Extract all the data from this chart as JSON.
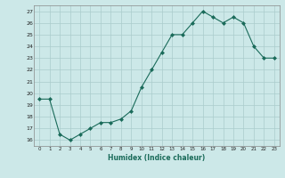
{
  "x": [
    0,
    1,
    2,
    3,
    4,
    5,
    6,
    7,
    8,
    9,
    10,
    11,
    12,
    13,
    14,
    15,
    16,
    17,
    18,
    19,
    20,
    21,
    22,
    23
  ],
  "y": [
    19.5,
    19.5,
    16.5,
    16.0,
    16.5,
    17.0,
    17.5,
    17.5,
    17.8,
    18.5,
    20.5,
    22.0,
    23.5,
    25.0,
    25.0,
    26.0,
    27.0,
    26.5,
    26.0,
    26.5,
    26.0,
    24.0,
    23.0,
    23.0
  ],
  "line_color": "#1a6b5a",
  "marker": "D",
  "marker_size": 2,
  "bg_color": "#cce8e8",
  "grid_color": "#aacccc",
  "xlabel": "Humidex (Indice chaleur)",
  "ylim": [
    15.5,
    27.5
  ],
  "xlim": [
    -0.5,
    23.5
  ],
  "yticks": [
    16,
    17,
    18,
    19,
    20,
    21,
    22,
    23,
    24,
    25,
    26,
    27
  ],
  "xticks": [
    0,
    1,
    2,
    3,
    4,
    5,
    6,
    7,
    8,
    9,
    10,
    11,
    12,
    13,
    14,
    15,
    16,
    17,
    18,
    19,
    20,
    21,
    22,
    23
  ]
}
